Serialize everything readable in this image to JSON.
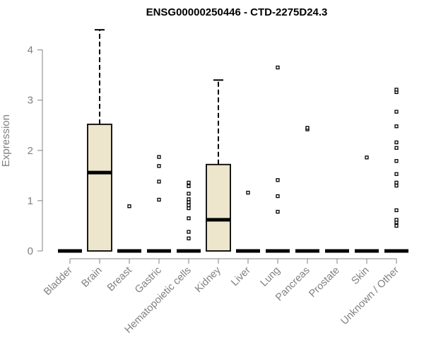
{
  "chart_data": {
    "type": "boxplot",
    "title": "ENSG00000250446 - CTD-2275D24.3",
    "xlabel": "",
    "ylabel": "Expression",
    "ylim": [
      0,
      4.4
    ],
    "yticks": [
      0,
      1,
      2,
      3,
      4
    ],
    "grid": false,
    "colors": {
      "box_fill": "#ede5cc",
      "stroke": "#000000",
      "axis": "#808080"
    },
    "categories": [
      "Bladder",
      "Brain",
      "Breast",
      "Gastric",
      "Hematopoietic cells",
      "Kidney",
      "Liver",
      "Lung",
      "Pancreas",
      "Prostate",
      "Skin",
      "Unknown / Other"
    ],
    "boxes": [
      {
        "category": "Bladder",
        "min": 0,
        "q1": 0,
        "median": 0,
        "q3": 0,
        "max": 0,
        "outliers": []
      },
      {
        "category": "Brain",
        "min": 0,
        "q1": 0,
        "median": 1.56,
        "q3": 2.52,
        "max": 4.4,
        "outliers": []
      },
      {
        "category": "Breast",
        "min": 0,
        "q1": 0,
        "median": 0,
        "q3": 0,
        "max": 0,
        "outliers": [
          0.89
        ]
      },
      {
        "category": "Gastric",
        "min": 0,
        "q1": 0,
        "median": 0,
        "q3": 0,
        "max": 0,
        "outliers": [
          1.02,
          1.38,
          1.69,
          1.87
        ]
      },
      {
        "category": "Hematopoietic cells",
        "min": 0,
        "q1": 0,
        "median": 0,
        "q3": 0,
        "max": 0,
        "outliers": [
          0.25,
          0.38,
          0.65,
          0.85,
          0.91,
          0.97,
          1.03,
          1.14,
          1.29,
          1.36
        ]
      },
      {
        "category": "Kidney",
        "min": 0,
        "q1": 0,
        "median": 0.62,
        "q3": 1.72,
        "max": 3.4,
        "outliers": []
      },
      {
        "category": "Liver",
        "min": 0,
        "q1": 0,
        "median": 0,
        "q3": 0,
        "max": 0,
        "outliers": [
          1.16
        ]
      },
      {
        "category": "Lung",
        "min": 0,
        "q1": 0,
        "median": 0,
        "q3": 0,
        "max": 0,
        "outliers": [
          0.78,
          1.09,
          1.41,
          3.65
        ]
      },
      {
        "category": "Pancreas",
        "min": 0,
        "q1": 0,
        "median": 0,
        "q3": 0,
        "max": 0,
        "outliers": [
          2.42,
          2.45
        ]
      },
      {
        "category": "Prostate",
        "min": 0,
        "q1": 0,
        "median": 0,
        "q3": 0,
        "max": 0,
        "outliers": []
      },
      {
        "category": "Skin",
        "min": 0,
        "q1": 0,
        "median": 0,
        "q3": 0,
        "max": 0,
        "outliers": [
          1.86
        ]
      },
      {
        "category": "Unknown / Other",
        "min": 0,
        "q1": 0,
        "median": 0,
        "q3": 0,
        "max": 0,
        "outliers": [
          0.5,
          0.57,
          0.62,
          0.81,
          1.3,
          1.36,
          1.53,
          1.79,
          2.05,
          2.16,
          2.48,
          2.77,
          3.16,
          3.21
        ]
      }
    ]
  }
}
